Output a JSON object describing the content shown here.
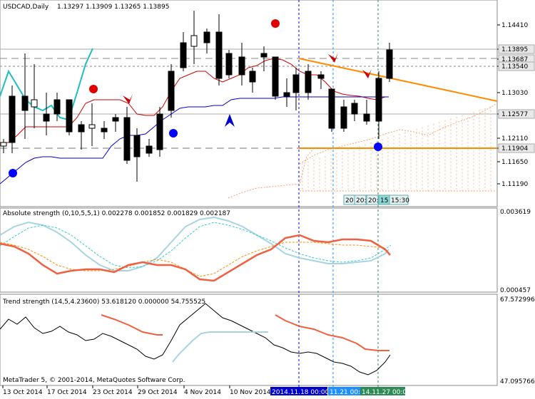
{
  "window": {
    "symbol_header": "USDCAD,Daily",
    "ohlc_header": "1.13297 1.13909 1.13265 1.13895",
    "copyright": "MetaTrader 5, © 2001-2014, MetaQuotes Software Corp."
  },
  "colors": {
    "bull_candle": "#ffffff",
    "bear_candle": "#000000",
    "trendline": "#ff8c00",
    "support_line": "#ff8c00",
    "cyan_line": "#1fbfbf",
    "red_line": "#cc0000",
    "blue_line": "#0000cc",
    "red_dot": "#e00000",
    "blue_dot": "#0000ff",
    "osc_red": "#f06040",
    "osc_light": "#a0d0e0",
    "grid_dash": "#888888"
  },
  "main_panel": {
    "price_labels": [
      {
        "value": "1.14410"
      },
      {
        "value": "1.13895",
        "highlight": true
      },
      {
        "value": "1.13687",
        "highlight": true
      },
      {
        "value": "1.13540",
        "highlight": true
      },
      {
        "value": "1.13030"
      },
      {
        "value": "1.12577",
        "highlight": true
      },
      {
        "value": "1.12110"
      },
      {
        "value": "1.11904",
        "highlight": true
      },
      {
        "value": "1.11650"
      },
      {
        "value": "1.11190"
      }
    ],
    "time_badges": [
      "20:",
      "20:",
      "20:",
      "15:",
      "15:30"
    ]
  },
  "absolute_strength": {
    "title": "Absolute strength (0,10,5,5,1) 0.002278 0.001852 0.001829 0.002187",
    "top_value": "0.003619",
    "bottom_value": "0.000457"
  },
  "trend_strength": {
    "title": "Trend strength (14,5,4.23600) 53.618120 0.000000 54.755525",
    "top_value": "67.572996",
    "bottom_value": "47.095766"
  },
  "time_axis": {
    "labels": [
      "13 Oct 2014",
      "17 Oct 2014",
      "23 Oct 2014",
      "29 Oct 2014",
      "4 Nov 2014",
      "10 Nov 2014"
    ],
    "highlighted": [
      {
        "text": "2014.11.18 00:00",
        "color": "#0000cc"
      },
      {
        "text": "11.21 00:00",
        "color": "#1e90ff"
      },
      {
        "text": "14.11.27 00:00",
        "color": "#2e8b57"
      }
    ]
  }
}
